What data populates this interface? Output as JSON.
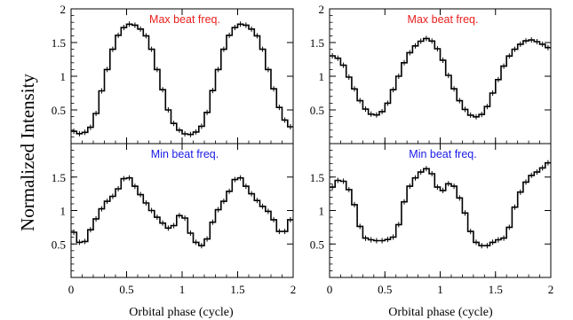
{
  "ylabel": "Normalized Intensity",
  "xlabel": "Orbital phase (cycle)",
  "x_ticks": [
    "0",
    "0.5",
    "1",
    "1.5",
    "2"
  ],
  "colors": {
    "max_label": "#e8201e",
    "min_label": "#1a1ae8",
    "line": "#000000"
  },
  "chart_data": [
    {
      "type": "line",
      "position": "top-left",
      "annotation": "Max beat freq.",
      "annotation_color": "#e8201e",
      "xlim": [
        0,
        2
      ],
      "ylim": [
        0,
        2
      ],
      "y_ticks": [
        "0.5",
        "1",
        "1.5",
        "2"
      ],
      "x": [
        0.0,
        0.1,
        0.2,
        0.3,
        0.4,
        0.5,
        0.6,
        0.7,
        0.8,
        0.9,
        1.0,
        1.1,
        1.2,
        1.3,
        1.4,
        1.5,
        1.6,
        1.7,
        1.8,
        1.9,
        2.0
      ],
      "values": [
        0.2,
        0.13,
        0.28,
        0.95,
        1.55,
        1.78,
        1.75,
        1.55,
        0.95,
        0.35,
        0.15,
        0.13,
        0.3,
        0.95,
        1.55,
        1.78,
        1.75,
        1.55,
        0.95,
        0.4,
        0.2
      ]
    },
    {
      "type": "line",
      "position": "top-right",
      "annotation": "Max beat freq.",
      "annotation_color": "#e8201e",
      "xlim": [
        0,
        2
      ],
      "ylim": [
        0,
        2
      ],
      "y_ticks": [
        "0.5",
        "1",
        "1.5",
        "2"
      ],
      "x": [
        0.0,
        0.1,
        0.2,
        0.3,
        0.4,
        0.5,
        0.6,
        0.7,
        0.8,
        0.9,
        1.0,
        1.1,
        1.2,
        1.3,
        1.4,
        1.5,
        1.6,
        1.7,
        1.8,
        1.9,
        2.0
      ],
      "values": [
        1.32,
        1.25,
        0.9,
        0.55,
        0.4,
        0.5,
        0.9,
        1.3,
        1.5,
        1.58,
        1.35,
        0.9,
        0.55,
        0.38,
        0.45,
        0.85,
        1.25,
        1.45,
        1.55,
        1.5,
        1.4
      ]
    },
    {
      "type": "line",
      "position": "bottom-left",
      "annotation": "Min beat freq.",
      "annotation_color": "#1a1ae8",
      "xlim": [
        0,
        2
      ],
      "ylim": [
        0,
        2
      ],
      "y_ticks": [
        "0.5",
        "1",
        "1.5"
      ],
      "x": [
        0.0,
        0.1,
        0.2,
        0.3,
        0.4,
        0.5,
        0.6,
        0.7,
        0.8,
        0.9,
        1.0,
        1.1,
        1.2,
        1.3,
        1.4,
        1.5,
        1.6,
        1.7,
        1.8,
        1.9,
        2.0
      ],
      "values": [
        0.75,
        0.45,
        0.8,
        1.1,
        1.25,
        1.55,
        1.3,
        1.05,
        0.85,
        0.7,
        1.0,
        0.55,
        0.45,
        0.95,
        1.2,
        1.55,
        1.3,
        1.1,
        0.95,
        0.6,
        0.95
      ]
    },
    {
      "type": "line",
      "position": "bottom-right",
      "annotation": "Min beat freq.",
      "annotation_color": "#1a1ae8",
      "xlim": [
        0,
        2
      ],
      "ylim": [
        0,
        2
      ],
      "y_ticks": [
        "0.5",
        "1",
        "1.5"
      ],
      "x": [
        0.0,
        0.1,
        0.2,
        0.3,
        0.4,
        0.5,
        0.6,
        0.7,
        0.8,
        0.9,
        1.0,
        1.1,
        1.2,
        1.3,
        1.4,
        1.5,
        1.6,
        1.7,
        1.8,
        1.9,
        2.0
      ],
      "values": [
        1.3,
        1.5,
        1.25,
        0.6,
        0.55,
        0.55,
        0.62,
        1.3,
        1.55,
        1.65,
        1.25,
        1.45,
        1.1,
        0.55,
        0.45,
        0.55,
        0.6,
        1.2,
        1.5,
        1.6,
        1.75
      ]
    }
  ]
}
